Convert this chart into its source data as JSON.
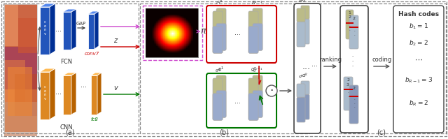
{
  "fig_width": 6.4,
  "fig_height": 1.99,
  "dpi": 100,
  "bg_color": "#ffffff",
  "panel_a_label": "(a)",
  "panel_b_label": "(b)",
  "panel_c_label": "(c)",
  "fcn_label": "FCN",
  "cnn_label": "CNN",
  "gap_label": "GAP",
  "conv7_label": "conv7",
  "fc8_label": "fc8",
  "z_label": "z",
  "v_label": "v",
  "pi_label": "π",
  "ranking_label": "ranking",
  "coding_label": "coding",
  "hashcodes_label": "Hash codes",
  "outer_dashed_color": "#888888",
  "red_box_color": "#cc0000",
  "green_box_color": "#007700",
  "pink_dashed_color": "#cc44cc",
  "fcn_block_color": "#2255bb",
  "cnn_block_color": "#dd8822",
  "blue_bar_color": "#5588cc",
  "light_blue_bar_color": "#99aacc",
  "olive_bar_color": "#bbbb88",
  "arrow_color": "#555555",
  "red_arrow_color": "#cc0000",
  "green_arrow_color": "#007700"
}
